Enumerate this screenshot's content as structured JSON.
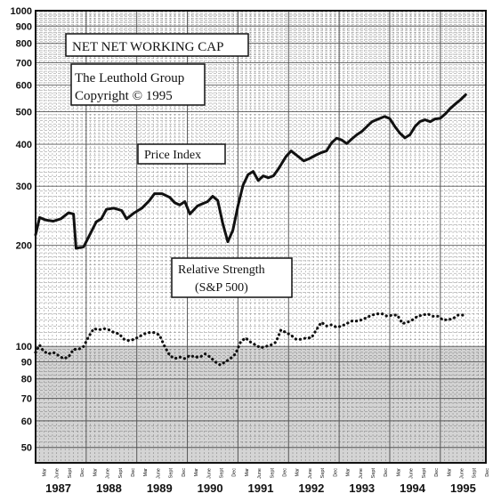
{
  "chart_data": {
    "type": "line",
    "scale": "log",
    "grid": true,
    "ylim": [
      45,
      1000
    ],
    "y_ticks": [
      "1000",
      "900",
      "800",
      "700",
      "600",
      "500",
      "400",
      "300",
      "200",
      "100",
      "90",
      "80",
      "70",
      "60",
      "50"
    ],
    "x_years": [
      "1987",
      "1988",
      "1989",
      "1990",
      "1991",
      "1992",
      "1993",
      "1994",
      "1995"
    ],
    "x_month_ticks": [
      "Mar",
      "June",
      "Sept",
      "Dec"
    ],
    "x_range": [
      1987.0,
      1995.9
    ],
    "annotations": {
      "title": "NET NET WORKING CAP",
      "source_line1": "The Leuthold Group",
      "source_line2": "Copyright © 1995",
      "price_label": "Price Index",
      "rs_label_line1": "Relative Strength",
      "rs_label_line2": "(S&P 500)"
    },
    "series": [
      {
        "name": "Price Index",
        "style": "solid",
        "points": [
          [
            1987.0,
            215
          ],
          [
            1987.08,
            242
          ],
          [
            1987.2,
            238
          ],
          [
            1987.35,
            236
          ],
          [
            1987.5,
            240
          ],
          [
            1987.65,
            250
          ],
          [
            1987.75,
            248
          ],
          [
            1987.8,
            196
          ],
          [
            1987.95,
            198
          ],
          [
            1988.05,
            212
          ],
          [
            1988.2,
            235
          ],
          [
            1988.3,
            240
          ],
          [
            1988.4,
            256
          ],
          [
            1988.55,
            258
          ],
          [
            1988.7,
            254
          ],
          [
            1988.8,
            240
          ],
          [
            1988.95,
            250
          ],
          [
            1989.1,
            258
          ],
          [
            1989.25,
            272
          ],
          [
            1989.35,
            285
          ],
          [
            1989.5,
            285
          ],
          [
            1989.65,
            278
          ],
          [
            1989.75,
            268
          ],
          [
            1989.85,
            264
          ],
          [
            1989.95,
            270
          ],
          [
            1990.05,
            248
          ],
          [
            1990.2,
            262
          ],
          [
            1990.3,
            266
          ],
          [
            1990.4,
            270
          ],
          [
            1990.5,
            280
          ],
          [
            1990.6,
            272
          ],
          [
            1990.7,
            232
          ],
          [
            1990.8,
            205
          ],
          [
            1990.9,
            222
          ],
          [
            1991.0,
            262
          ],
          [
            1991.1,
            302
          ],
          [
            1991.2,
            325
          ],
          [
            1991.3,
            332
          ],
          [
            1991.4,
            312
          ],
          [
            1991.5,
            322
          ],
          [
            1991.6,
            318
          ],
          [
            1991.7,
            322
          ],
          [
            1991.8,
            338
          ],
          [
            1991.95,
            368
          ],
          [
            1992.05,
            382
          ],
          [
            1992.15,
            372
          ],
          [
            1992.3,
            357
          ],
          [
            1992.4,
            362
          ],
          [
            1992.55,
            372
          ],
          [
            1992.65,
            378
          ],
          [
            1992.75,
            382
          ],
          [
            1992.85,
            404
          ],
          [
            1992.95,
            417
          ],
          [
            1993.05,
            412
          ],
          [
            1993.15,
            402
          ],
          [
            1993.25,
            415
          ],
          [
            1993.35,
            427
          ],
          [
            1993.45,
            437
          ],
          [
            1993.55,
            452
          ],
          [
            1993.65,
            467
          ],
          [
            1993.75,
            474
          ],
          [
            1993.9,
            484
          ],
          [
            1994.0,
            477
          ],
          [
            1994.1,
            452
          ],
          [
            1994.2,
            432
          ],
          [
            1994.3,
            418
          ],
          [
            1994.4,
            427
          ],
          [
            1994.5,
            452
          ],
          [
            1994.6,
            468
          ],
          [
            1994.7,
            473
          ],
          [
            1994.8,
            467
          ],
          [
            1994.9,
            476
          ],
          [
            1995.0,
            478
          ],
          [
            1995.1,
            493
          ],
          [
            1995.2,
            512
          ],
          [
            1995.3,
            528
          ],
          [
            1995.4,
            543
          ],
          [
            1995.5,
            562
          ]
        ]
      },
      {
        "name": "Relative Strength (S&P 500)",
        "style": "dotted",
        "points": [
          [
            1987.0,
            96
          ],
          [
            1987.08,
            101
          ],
          [
            1987.15,
            97
          ],
          [
            1987.25,
            95
          ],
          [
            1987.35,
            96
          ],
          [
            1987.45,
            94
          ],
          [
            1987.55,
            92
          ],
          [
            1987.65,
            93
          ],
          [
            1987.75,
            98
          ],
          [
            1987.85,
            98
          ],
          [
            1987.95,
            100
          ],
          [
            1988.05,
            107
          ],
          [
            1988.15,
            113
          ],
          [
            1988.25,
            112
          ],
          [
            1988.35,
            113
          ],
          [
            1988.45,
            112
          ],
          [
            1988.55,
            110
          ],
          [
            1988.65,
            109
          ],
          [
            1988.75,
            105
          ],
          [
            1988.85,
            104
          ],
          [
            1988.95,
            105
          ],
          [
            1989.05,
            107
          ],
          [
            1989.15,
            109
          ],
          [
            1989.25,
            110
          ],
          [
            1989.35,
            110
          ],
          [
            1989.45,
            108
          ],
          [
            1989.55,
            100
          ],
          [
            1989.65,
            94
          ],
          [
            1989.75,
            92
          ],
          [
            1989.85,
            93
          ],
          [
            1989.95,
            92
          ],
          [
            1990.05,
            94
          ],
          [
            1990.15,
            93
          ],
          [
            1990.25,
            93
          ],
          [
            1990.35,
            95
          ],
          [
            1990.45,
            93
          ],
          [
            1990.55,
            90
          ],
          [
            1990.65,
            88
          ],
          [
            1990.75,
            90
          ],
          [
            1990.85,
            92
          ],
          [
            1990.95,
            95
          ],
          [
            1991.05,
            103
          ],
          [
            1991.15,
            106
          ],
          [
            1991.25,
            103
          ],
          [
            1991.35,
            101
          ],
          [
            1991.45,
            99
          ],
          [
            1991.55,
            100
          ],
          [
            1991.65,
            101
          ],
          [
            1991.75,
            103
          ],
          [
            1991.85,
            112
          ],
          [
            1991.95,
            110
          ],
          [
            1992.05,
            108
          ],
          [
            1992.15,
            105
          ],
          [
            1992.25,
            105
          ],
          [
            1992.35,
            106
          ],
          [
            1992.45,
            106
          ],
          [
            1992.55,
            112
          ],
          [
            1992.65,
            118
          ],
          [
            1992.75,
            115
          ],
          [
            1992.85,
            116
          ],
          [
            1992.95,
            114
          ],
          [
            1993.05,
            115
          ],
          [
            1993.15,
            117
          ],
          [
            1993.25,
            119
          ],
          [
            1993.35,
            119
          ],
          [
            1993.45,
            120
          ],
          [
            1993.55,
            122
          ],
          [
            1993.65,
            124
          ],
          [
            1993.75,
            125
          ],
          [
            1993.85,
            125
          ],
          [
            1993.95,
            123
          ],
          [
            1994.05,
            124
          ],
          [
            1994.15,
            124
          ],
          [
            1994.25,
            117
          ],
          [
            1994.35,
            118
          ],
          [
            1994.45,
            120
          ],
          [
            1994.55,
            123
          ],
          [
            1994.65,
            124
          ],
          [
            1994.75,
            125
          ],
          [
            1994.85,
            123
          ],
          [
            1994.95,
            123
          ],
          [
            1995.05,
            120
          ],
          [
            1995.15,
            120
          ],
          [
            1995.25,
            121
          ],
          [
            1995.35,
            124
          ],
          [
            1995.45,
            124
          ]
        ]
      }
    ],
    "colors": {
      "line": "#111111",
      "grid": "#555555",
      "shade": "#d4d4d4",
      "background": "#ffffff"
    }
  }
}
